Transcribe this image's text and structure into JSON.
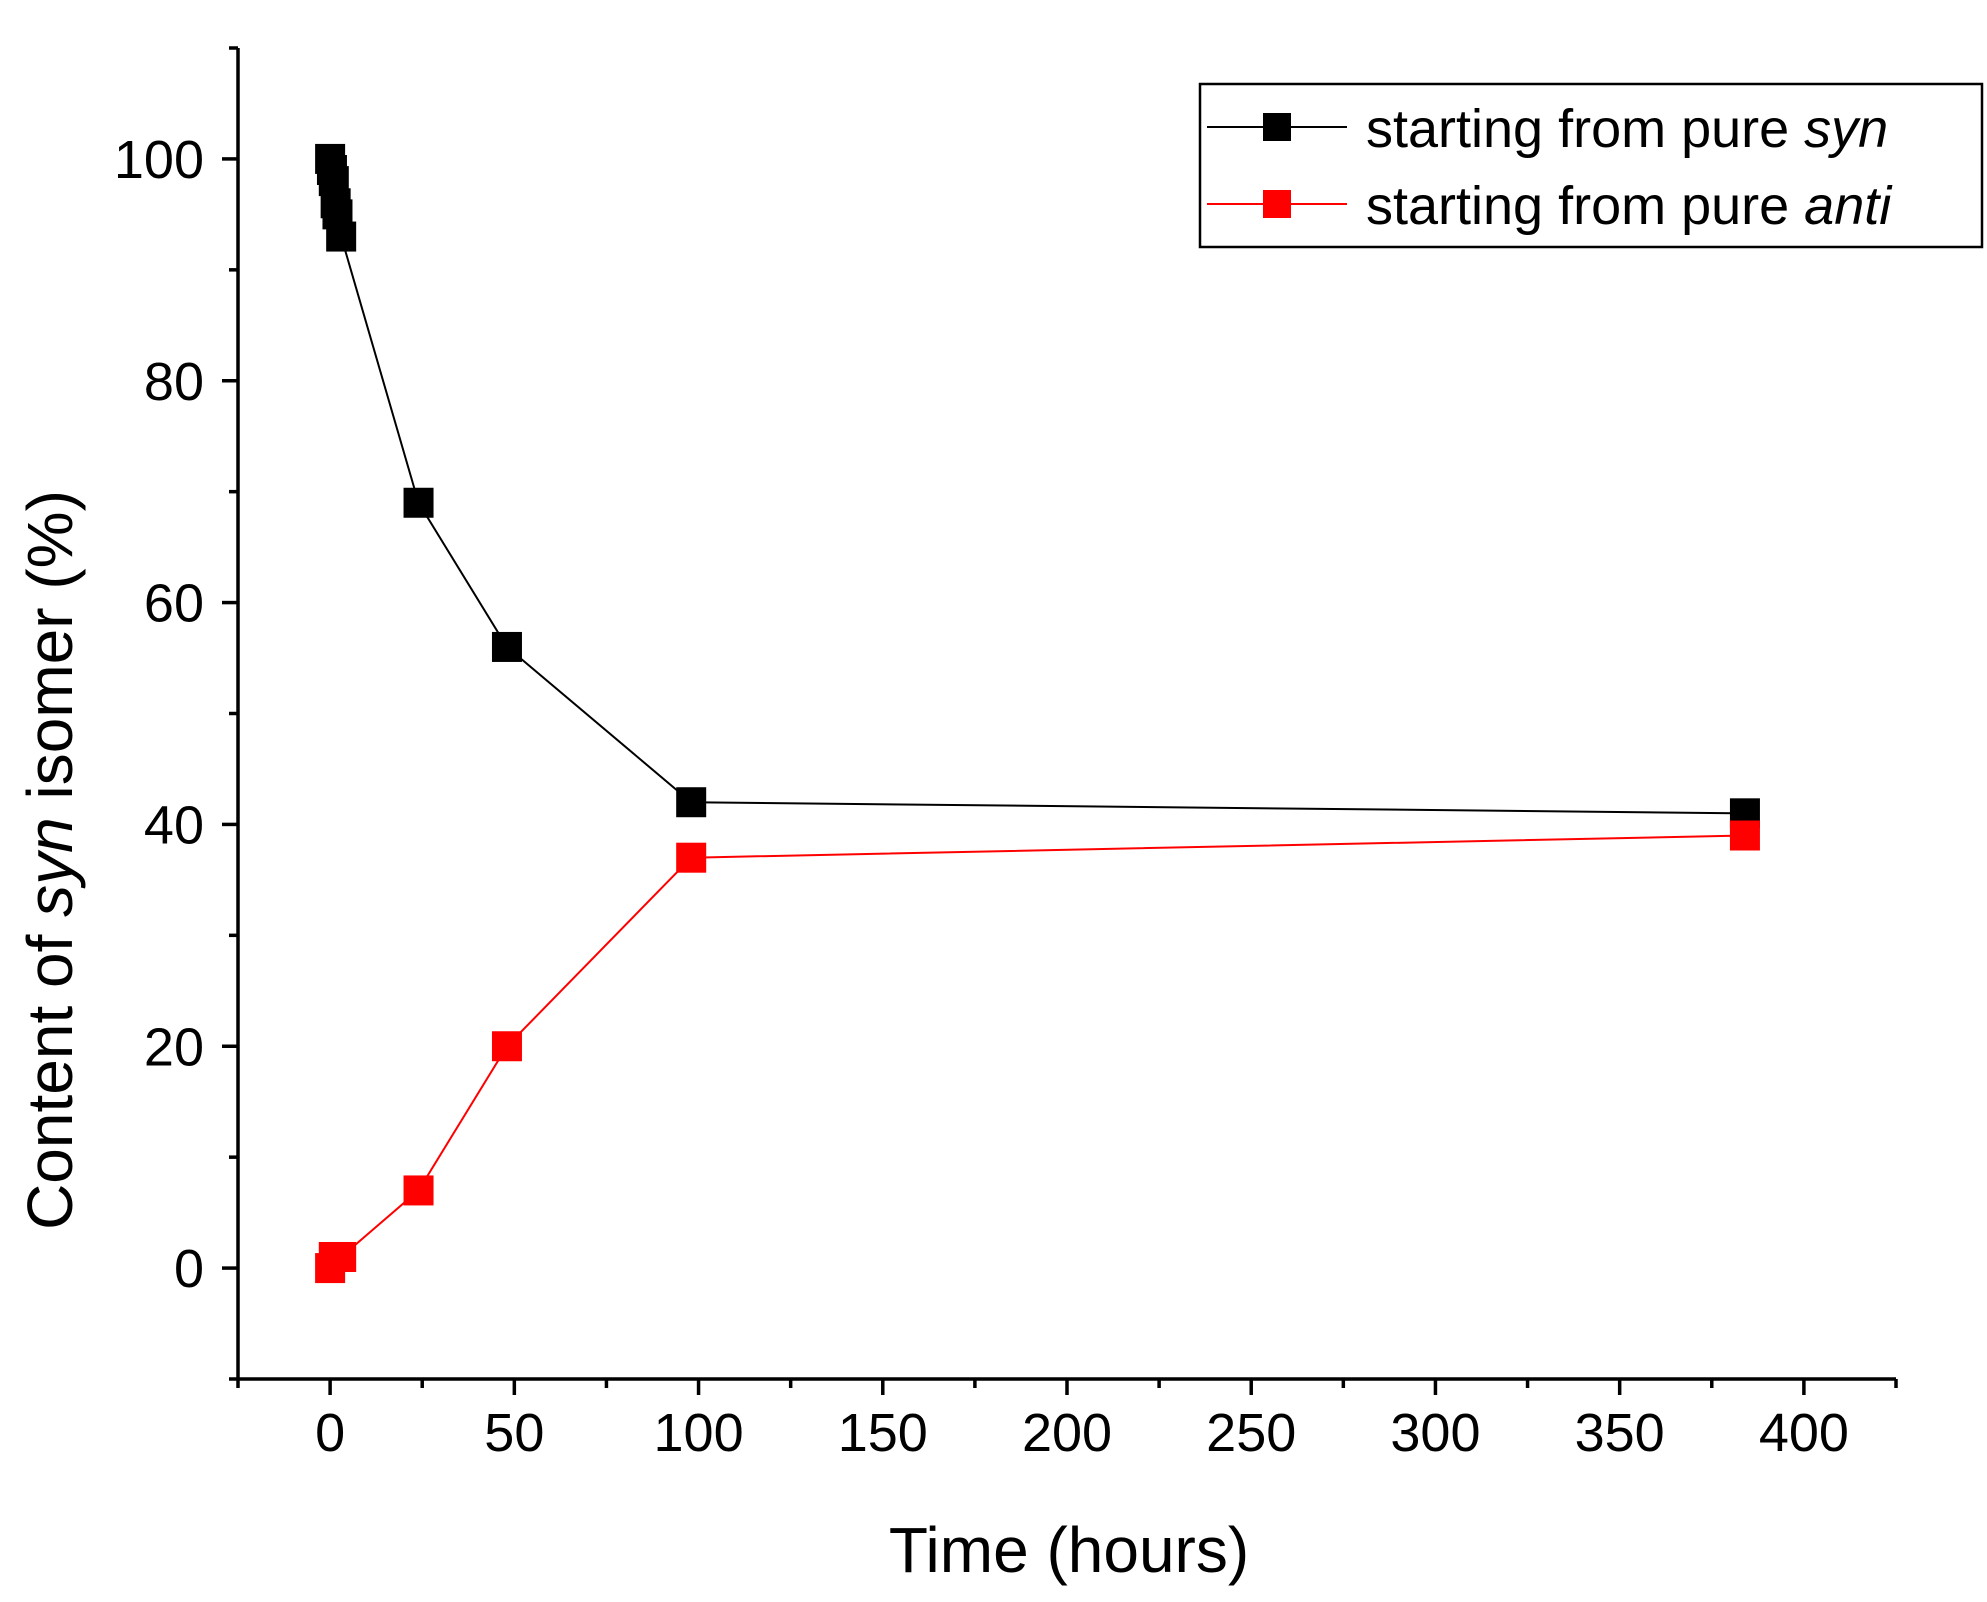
{
  "chart_data": {
    "type": "line",
    "title": "",
    "xlabel": "Time (hours)",
    "ylabel": {
      "prefix": "Content of ",
      "italic": "syn",
      "suffix": " isomer (%)"
    },
    "xlim": [
      -25,
      425
    ],
    "ylim": [
      -10,
      110
    ],
    "xticks": [
      0,
      50,
      100,
      150,
      200,
      250,
      300,
      350,
      400
    ],
    "yticks": [
      0,
      20,
      40,
      60,
      80,
      100
    ],
    "xticks_minor_step": 25,
    "yticks_minor_step": 10,
    "grid": false,
    "legend_position": "top-right",
    "series": [
      {
        "name": "starting from pure syn",
        "legend": {
          "prefix": "starting from pure ",
          "italic": "syn"
        },
        "color": "#000000",
        "marker": "square",
        "x": [
          0,
          0.5,
          1,
          1.5,
          2,
          3,
          24,
          48,
          98,
          384
        ],
        "y": [
          100,
          99,
          98,
          96,
          95,
          93,
          69,
          56,
          42,
          41
        ]
      },
      {
        "name": "starting from pure anti",
        "legend": {
          "prefix": "starting from pure ",
          "italic": "anti"
        },
        "color": "#ff0000",
        "marker": "square",
        "x": [
          0,
          1,
          3,
          24,
          48,
          98,
          384
        ],
        "y": [
          0,
          1,
          1,
          7,
          20,
          37,
          39
        ]
      }
    ]
  }
}
